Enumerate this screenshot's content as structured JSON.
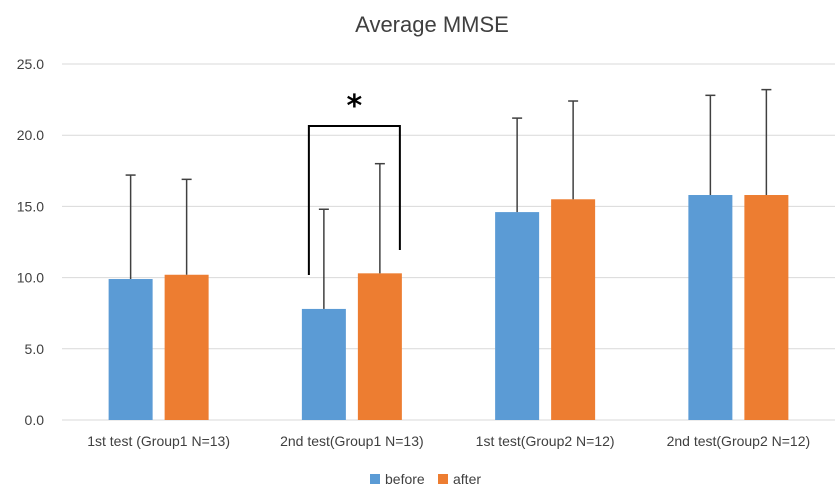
{
  "chart_data": {
    "type": "bar",
    "title": "Average MMSE",
    "categories": [
      "1st test (Group1 N=13)",
      "2nd test(Group1 N=13)",
      "1st test(Group2 N=12)",
      "2nd test(Group2 N=12)"
    ],
    "series": [
      {
        "name": "before",
        "color": "#5b9bd5",
        "values": [
          9.9,
          7.8,
          14.6,
          15.8
        ],
        "error": [
          7.3,
          7.0,
          6.6,
          7.0
        ]
      },
      {
        "name": "after",
        "color": "#ed7d31",
        "values": [
          10.2,
          10.3,
          15.5,
          15.8
        ],
        "error": [
          6.7,
          7.7,
          6.9,
          7.4
        ]
      }
    ],
    "ylim": [
      0,
      25
    ],
    "yticks": [
      "0.0",
      "5.0",
      "10.0",
      "15.0",
      "20.0",
      "25.0"
    ],
    "grid": true,
    "legend_position": "bottom",
    "annotation": {
      "text": "*",
      "category_index": 1,
      "type": "significance-bracket"
    }
  }
}
